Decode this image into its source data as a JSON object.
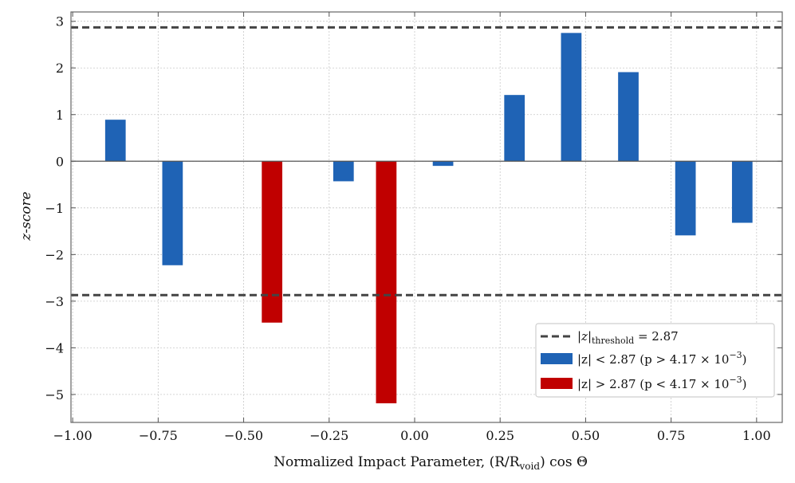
{
  "chart_data": {
    "type": "bar",
    "xlabel": "Normalized Impact Parameter, (R/R",
    "xlabel_sub": "void",
    "xlabel_tail": ") cos Θ",
    "ylabel": "z-score",
    "xlim": [
      -1.005,
      1.075
    ],
    "ylim": [
      -5.6,
      3.2
    ],
    "bar_width": 0.06,
    "x_ticks": [
      -1.0,
      -0.75,
      -0.5,
      -0.25,
      0.0,
      0.25,
      0.5,
      0.75,
      1.0
    ],
    "x_tick_labels": [
      "−1.00",
      "−0.75",
      "−0.50",
      "−0.25",
      "0.00",
      "0.25",
      "0.50",
      "0.75",
      "1.00"
    ],
    "y_ticks": [
      3,
      2,
      1,
      0,
      -1,
      -2,
      -3,
      -4,
      -5
    ],
    "y_tick_labels": [
      "3",
      "2",
      "1",
      "0",
      "−1",
      "−2",
      "−3",
      "−4",
      "−5"
    ],
    "threshold": 2.87,
    "x": [
      -0.875,
      -0.708,
      -0.542,
      -0.417,
      -0.208,
      -0.083,
      0.083,
      0.292,
      0.458,
      0.625,
      0.792,
      0.958
    ],
    "values": [
      0.89,
      -2.23,
      0.0,
      -3.46,
      -0.43,
      -5.19,
      -0.1,
      1.42,
      2.75,
      1.91,
      -1.59,
      -1.32
    ],
    "colors": {
      "below": "#1f63b5",
      "above": "#c00000",
      "threshold_line": "#444444",
      "grid": "#c8c8c8",
      "axis": "#555555"
    },
    "legend": {
      "threshold_label": "|z|",
      "threshold_sub": "threshold",
      "threshold_value": " = 2.87",
      "below_label": "|z| < 2.87 (p > 4.17 × 10",
      "below_exp": "−3",
      "above_label": "|z| > 2.87 (p < 4.17 × 10",
      "above_exp": "−3",
      "close": ")",
      "position": "lower-right"
    },
    "grid": true
  }
}
